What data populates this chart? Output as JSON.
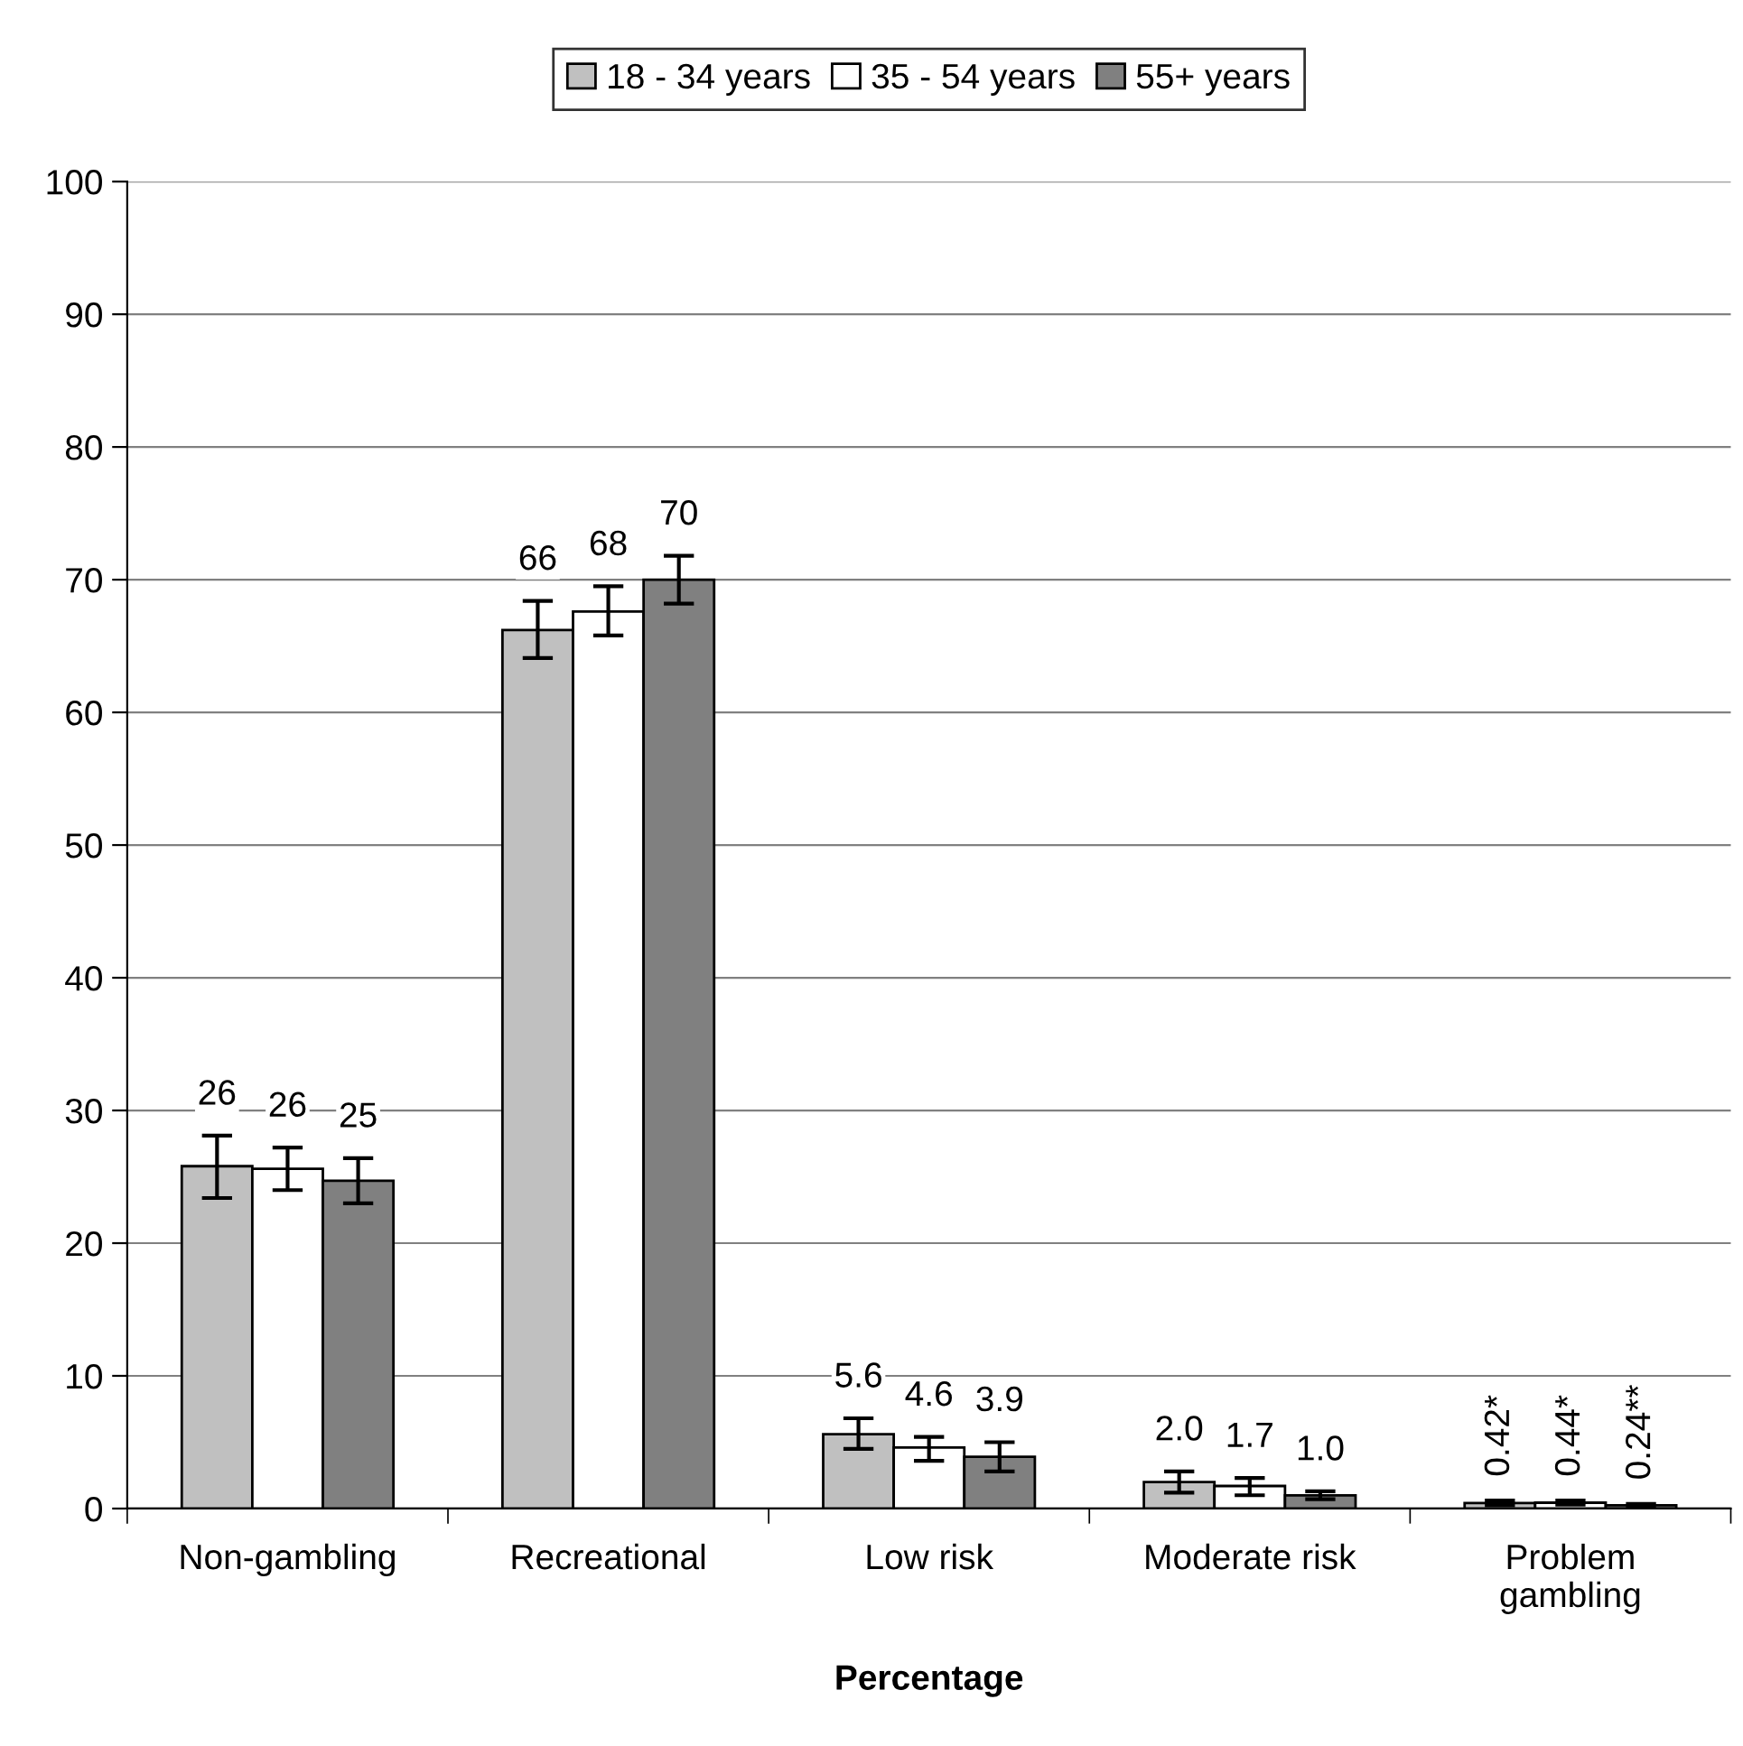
{
  "chart_data": {
    "type": "bar",
    "xlabel": "Percentage",
    "categories": [
      "Non-gambling",
      "Recreational",
      "Low risk",
      "Moderate risk",
      "Problem\ngambling"
    ],
    "series": [
      {
        "name": "18 - 34 years",
        "color": "#c0c0c0",
        "values": [
          25.8,
          66.2,
          5.6,
          2.0,
          0.42
        ],
        "errors": [
          [
            23.4,
            28.1
          ],
          [
            64.1,
            68.4
          ],
          [
            4.5,
            6.8
          ],
          [
            1.2,
            2.8
          ],
          [
            0.25,
            0.6
          ]
        ],
        "value_labels": [
          "26",
          "66",
          "5.6",
          "2.0",
          "0.42*"
        ]
      },
      {
        "name": "35 - 54 years",
        "color": "#ffffff",
        "values": [
          25.6,
          67.6,
          4.6,
          1.7,
          0.44
        ],
        "errors": [
          [
            24.0,
            27.2
          ],
          [
            65.8,
            69.5
          ],
          [
            3.6,
            5.4
          ],
          [
            1.0,
            2.3
          ],
          [
            0.3,
            0.6
          ]
        ],
        "value_labels": [
          "26",
          "68",
          "4.6",
          "1.7",
          "0.44*"
        ]
      },
      {
        "name": "55+ years",
        "color": "#808080",
        "values": [
          24.7,
          70.0,
          3.9,
          1.0,
          0.24
        ],
        "errors": [
          [
            23.0,
            26.4
          ],
          [
            68.2,
            71.8
          ],
          [
            2.8,
            5.0
          ],
          [
            0.7,
            1.3
          ],
          [
            0.15,
            0.35
          ]
        ],
        "value_labels": [
          "25",
          "70",
          "3.9",
          "1.0",
          "0.24**"
        ]
      }
    ],
    "ylim": [
      0,
      100
    ],
    "yticks": [
      0,
      10,
      20,
      30,
      40,
      50,
      60,
      70,
      80,
      90,
      100
    ],
    "grid": "y",
    "legend": "top"
  }
}
